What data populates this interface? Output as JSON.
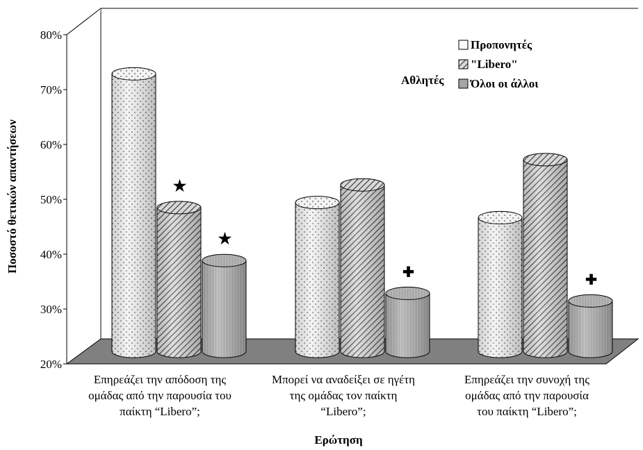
{
  "chart_data": {
    "type": "bar",
    "style": "3d-cylinder",
    "title": "",
    "xlabel": "Ερώτηση",
    "ylabel": "Ποσοστό θετικών απαντήσεων",
    "ylim": [
      20,
      80
    ],
    "yticks": [
      "20%",
      "30%",
      "40%",
      "50%",
      "60%",
      "70%",
      "80%"
    ],
    "grid": false,
    "categories": [
      [
        "Επηρεάζει την απόδοση της",
        "ομάδας από την παρουσία του",
        "παίκτη “Libero”;"
      ],
      [
        "Μπορεί να αναδείξει σε ηγέτη",
        "της ομάδας τον παίκτη",
        "“Libero”;"
      ],
      [
        "Επηρεάζει την συνοχή της",
        "ομάδας από την παρουσία",
        "του παίκτη “Libero”;"
      ]
    ],
    "series": [
      {
        "name": "Προπονητές",
        "values": [
          75,
          49.5,
          46.5
        ],
        "pattern": "dots"
      },
      {
        "name": "\"Libero\"",
        "values": [
          48.5,
          53,
          58
        ],
        "pattern": "diagonal-hatch"
      },
      {
        "name": "Όλοι οι άλλοι",
        "values": [
          38,
          31.5,
          30
        ],
        "pattern": "vertical-gray"
      }
    ],
    "legend": {
      "placement": "top-right",
      "group_label": "Αθλητές",
      "entries": [
        "Προπονητές",
        "\"Libero\"",
        "Όλοι οι άλλοι"
      ]
    },
    "annotations": [
      {
        "symbol": "★",
        "category": 0,
        "series": 1
      },
      {
        "symbol": "★",
        "category": 0,
        "series": 2
      },
      {
        "symbol": "✚",
        "category": 1,
        "series": 2
      },
      {
        "symbol": "✚",
        "category": 2,
        "series": 2
      }
    ],
    "colors": {
      "floor": "#808080",
      "cylinder_outline": "#000000",
      "gray_fill": "#a6a6a6"
    }
  }
}
